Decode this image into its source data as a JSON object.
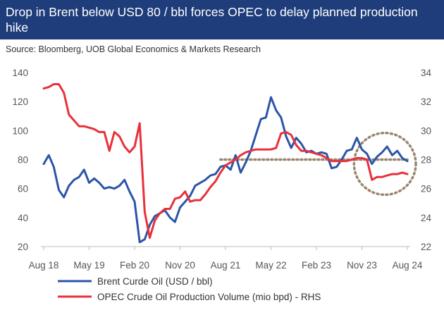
{
  "header": {
    "title": "Drop in Brent below USD 80 / bbl forces OPEC to delay planned production hike",
    "source": "Source: Bloomberg, UOB Global Economics & Markets Research"
  },
  "chart_data": {
    "type": "line",
    "title": "Drop in Brent below USD 80 / bbl forces OPEC to delay planned production hike",
    "x_tick_labels": [
      "Aug 18",
      "May 19",
      "Feb 20",
      "Nov 20",
      "Aug 21",
      "May 22",
      "Feb 23",
      "Nov 23",
      "Aug 24"
    ],
    "y_left": {
      "lim": [
        20,
        140
      ],
      "ticks": [
        20,
        40,
        60,
        80,
        100,
        120,
        140
      ]
    },
    "y_right": {
      "lim": [
        22,
        34
      ],
      "ticks": [
        22,
        24,
        26,
        28,
        30,
        32,
        34
      ]
    },
    "grid": false,
    "legend_position": "bottom",
    "colors": {
      "brent": "#2b55a8",
      "opec": "#e8303a",
      "reference": "#9b8570"
    },
    "series": [
      {
        "name": "Brent Curde Oil (USD / bbl)",
        "axis": "left",
        "x": [
          "Aug 18",
          "Sep 18",
          "Oct 18",
          "Nov 18",
          "Dec 18",
          "Jan 19",
          "Feb 19",
          "Mar 19",
          "Apr 19",
          "May 19",
          "Jun 19",
          "Jul 19",
          "Aug 19",
          "Sep 19",
          "Oct 19",
          "Nov 19",
          "Dec 19",
          "Jan 20",
          "Feb 20",
          "Mar 20",
          "Apr 20",
          "May 20",
          "Jun 20",
          "Jul 20",
          "Aug 20",
          "Sep 20",
          "Oct 20",
          "Nov 20",
          "Dec 20",
          "Jan 21",
          "Feb 21",
          "Mar 21",
          "Apr 21",
          "May 21",
          "Jun 21",
          "Jul 21",
          "Aug 21",
          "Sep 21",
          "Oct 21",
          "Nov 21",
          "Dec 21",
          "Jan 22",
          "Feb 22",
          "Mar 22",
          "Apr 22",
          "May 22",
          "Jun 22",
          "Jul 22",
          "Aug 22",
          "Sep 22",
          "Oct 22",
          "Nov 22",
          "Dec 22",
          "Jan 23",
          "Feb 23",
          "Mar 23",
          "Apr 23",
          "May 23",
          "Jun 23",
          "Jul 23",
          "Aug 23",
          "Sep 23",
          "Oct 23",
          "Nov 23",
          "Dec 23",
          "Jan 24",
          "Feb 24",
          "Mar 24",
          "Apr 24",
          "May 24",
          "Jun 24",
          "Jul 24",
          "Aug 24"
        ],
        "values": [
          77,
          83,
          75,
          59,
          54,
          62,
          66,
          68,
          73,
          64,
          67,
          64,
          60,
          61,
          60,
          62,
          66,
          58,
          51,
          23,
          25,
          35,
          41,
          43,
          45,
          40,
          37,
          47,
          51,
          55,
          62,
          64,
          66,
          69,
          70,
          75,
          76,
          73,
          83,
          71,
          78,
          86,
          97,
          108,
          109,
          123,
          114,
          109,
          96,
          88,
          95,
          91,
          85,
          86,
          84,
          85,
          84,
          74,
          75,
          80,
          86,
          87,
          95,
          87,
          84,
          77,
          82,
          85,
          89,
          83,
          86,
          81,
          79
        ]
      },
      {
        "name": "OPEC Crude Oil Production Volume (mio bpd) - RHS",
        "axis": "right",
        "x": [
          "Aug 18",
          "Sep 18",
          "Oct 18",
          "Nov 18",
          "Dec 18",
          "Jan 19",
          "Feb 19",
          "Mar 19",
          "Apr 19",
          "May 19",
          "Jun 19",
          "Jul 19",
          "Aug 19",
          "Sep 19",
          "Oct 19",
          "Nov 19",
          "Dec 19",
          "Jan 20",
          "Feb 20",
          "Mar 20",
          "Apr 20",
          "May 20",
          "Jun 20",
          "Jul 20",
          "Aug 20",
          "Sep 20",
          "Oct 20",
          "Nov 20",
          "Dec 20",
          "Jan 21",
          "Feb 21",
          "Mar 21",
          "Apr 21",
          "May 21",
          "Jun 21",
          "Jul 21",
          "Aug 21",
          "Sep 21",
          "Oct 21",
          "Nov 21",
          "Dec 21",
          "Jan 22",
          "Feb 22",
          "Mar 22",
          "Apr 22",
          "May 22",
          "Jun 22",
          "Jul 22",
          "Aug 22",
          "Sep 22",
          "Oct 22",
          "Nov 22",
          "Dec 22",
          "Jan 23",
          "Feb 23",
          "Mar 23",
          "Apr 23",
          "May 23",
          "Jun 23",
          "Jul 23",
          "Aug 23",
          "Sep 23",
          "Oct 23",
          "Nov 23",
          "Dec 23",
          "Jan 24",
          "Feb 24",
          "Mar 24",
          "Apr 24",
          "May 24",
          "Jun 24",
          "Jul 24",
          "Aug 24"
        ],
        "values": [
          32.9,
          33.0,
          33.2,
          33.2,
          32.6,
          31.1,
          30.7,
          30.3,
          30.3,
          30.2,
          30.1,
          29.9,
          29.9,
          28.6,
          29.9,
          29.6,
          28.9,
          28.5,
          28.9,
          30.5,
          24.4,
          22.6,
          23.8,
          24.3,
          24.6,
          24.6,
          25.3,
          25.4,
          25.8,
          25.1,
          25.2,
          25.2,
          25.6,
          26.1,
          26.5,
          27.1,
          27.6,
          27.8,
          28.0,
          28.3,
          28.5,
          28.6,
          28.7,
          28.7,
          28.7,
          28.7,
          28.8,
          29.8,
          29.9,
          29.7,
          29.0,
          28.6,
          28.6,
          28.5,
          28.4,
          28.3,
          28.1,
          27.9,
          27.9,
          27.9,
          27.9,
          28.0,
          28.1,
          28.1,
          28.0,
          26.6,
          26.8,
          26.8,
          26.9,
          27.0,
          27.0,
          27.1,
          27.0
        ]
      }
    ],
    "reference_line": {
      "axis": "left",
      "value": 80,
      "x_start": "Jul 21",
      "x_end": "Aug 24",
      "style": "dotted"
    },
    "annotation": {
      "shape": "dotted-circle",
      "x_start": "Oct 23",
      "x_end": "Aug 24",
      "y_center": 79
    }
  }
}
